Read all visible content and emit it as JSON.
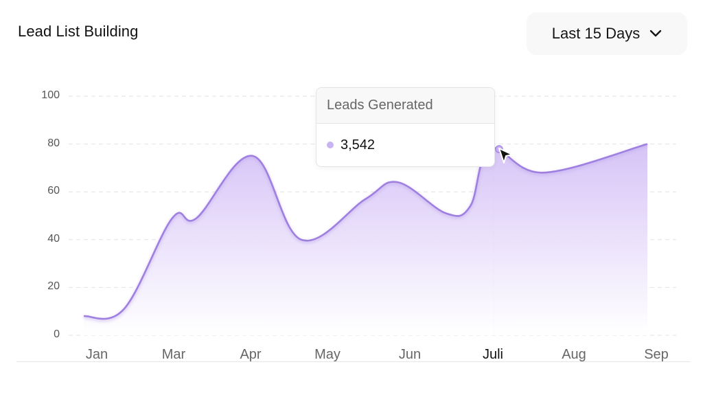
{
  "header": {
    "title": "Lead List Building",
    "range_selector": {
      "label": "Last 15 Days",
      "icon": "chevron-down-icon"
    }
  },
  "tooltip": {
    "title": "Leads Generated",
    "value": "3,542",
    "dot_color": "#c9b3f1"
  },
  "colors": {
    "line": "#9f7fe0",
    "fill_top": "#d9c8f7",
    "fill_bottom": "#ffffff",
    "grid": "#e2e2e2"
  },
  "chart_data": {
    "type": "area",
    "title": "Lead List Building",
    "xlabel": "",
    "ylabel": "",
    "categories": [
      "Jan",
      "Mar",
      "Apr",
      "May",
      "Jun",
      "Juli",
      "Aug",
      "Sep"
    ],
    "yticks": [
      "100",
      "80",
      "60",
      "40",
      "20",
      "0"
    ],
    "ylim": [
      0,
      100
    ],
    "grid": true,
    "legend": null,
    "active_category": "Juli",
    "series": [
      {
        "name": "Leads Generated",
        "x": [
          0,
          0.5,
          1.1,
          1.4,
          2.1,
          2.7,
          3.5,
          3.9,
          4.5,
          4.8,
          5.05,
          5.7,
          7.0
        ],
        "values": [
          8,
          11,
          49,
          49,
          75,
          40,
          57,
          64,
          51,
          54,
          78,
          68,
          80
        ]
      }
    ],
    "highlighted_point": {
      "category": "Juli",
      "value": 78,
      "label": "3,542"
    }
  }
}
